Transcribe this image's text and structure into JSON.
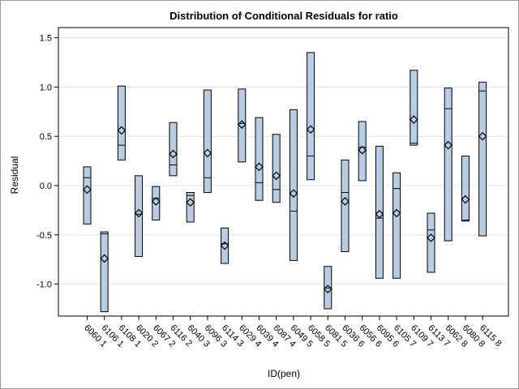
{
  "chart_data": {
    "type": "box",
    "title": "Distribution of Conditional Residuals for ratio",
    "xlabel": "ID(pen)",
    "ylabel": "Residual",
    "ylim": [
      -1.4,
      1.6
    ],
    "yticks": [
      "-1.0",
      "-0.5",
      "0.0",
      "0.5",
      "1.0",
      "1.5"
    ],
    "grid": "horizontal",
    "colors": {
      "box_fill": "#b8cde4",
      "stroke": "#000000",
      "grid": "#e3e3e3"
    },
    "categories": [
      "6060 1",
      "6106 1",
      "6108 1",
      "6020 2",
      "6067 2",
      "6116 2",
      "6040 3",
      "6096 3",
      "6114 3",
      "6029 4",
      "6039 4",
      "6087 4",
      "6049 5",
      "6058 5",
      "6081 5",
      "6036 6",
      "6056 6",
      "6095 6",
      "6105 7",
      "6109 7",
      "6113 7",
      "6062 8",
      "6080 8",
      "6115 8"
    ],
    "series": [
      {
        "stats": [
          {
            "min": -0.39,
            "median": 0.08,
            "max": 0.19,
            "mean": -0.04
          },
          {
            "min": -1.28,
            "median": -0.49,
            "max": -0.47,
            "mean": -0.74
          },
          {
            "min": 0.26,
            "median": 0.41,
            "max": 1.01,
            "mean": 0.56
          },
          {
            "min": -0.72,
            "median": -0.29,
            "max": 0.1,
            "mean": -0.28
          },
          {
            "min": -0.35,
            "median": -0.13,
            "max": -0.01,
            "mean": -0.16
          },
          {
            "min": 0.1,
            "median": 0.21,
            "max": 0.64,
            "mean": 0.32
          },
          {
            "min": -0.37,
            "median": -0.1,
            "max": -0.07,
            "mean": -0.17
          },
          {
            "min": -0.07,
            "median": 0.08,
            "max": 0.97,
            "mean": 0.33
          },
          {
            "min": -0.79,
            "median": -0.59,
            "max": -0.43,
            "mean": -0.61
          },
          {
            "min": 0.24,
            "median": 0.63,
            "max": 0.98,
            "mean": 0.62
          },
          {
            "min": -0.15,
            "median": 0.03,
            "max": 0.69,
            "mean": 0.19
          },
          {
            "min": -0.17,
            "median": -0.04,
            "max": 0.52,
            "mean": 0.1
          },
          {
            "min": -0.76,
            "median": -0.26,
            "max": 0.77,
            "mean": -0.08
          },
          {
            "min": 0.06,
            "median": 0.3,
            "max": 1.35,
            "mean": 0.57
          },
          {
            "min": -1.25,
            "median": -1.04,
            "max": -0.82,
            "mean": -1.05
          },
          {
            "min": -0.67,
            "median": -0.07,
            "max": 0.26,
            "mean": -0.16
          },
          {
            "min": 0.05,
            "median": 0.39,
            "max": 0.65,
            "mean": 0.36
          },
          {
            "min": -0.94,
            "median": -0.33,
            "max": 0.4,
            "mean": -0.29
          },
          {
            "min": -0.94,
            "median": -0.03,
            "max": 0.13,
            "mean": -0.28
          },
          {
            "min": 0.41,
            "median": 0.43,
            "max": 1.17,
            "mean": 0.67
          },
          {
            "min": -0.88,
            "median": -0.45,
            "max": -0.28,
            "mean": -0.53
          },
          {
            "min": -0.56,
            "median": 0.78,
            "max": 0.99,
            "mean": 0.41
          },
          {
            "min": -0.36,
            "median": -0.35,
            "max": 0.3,
            "mean": -0.14
          },
          {
            "min": -0.51,
            "median": 0.96,
            "max": 1.05,
            "mean": 0.5
          }
        ]
      }
    ]
  }
}
